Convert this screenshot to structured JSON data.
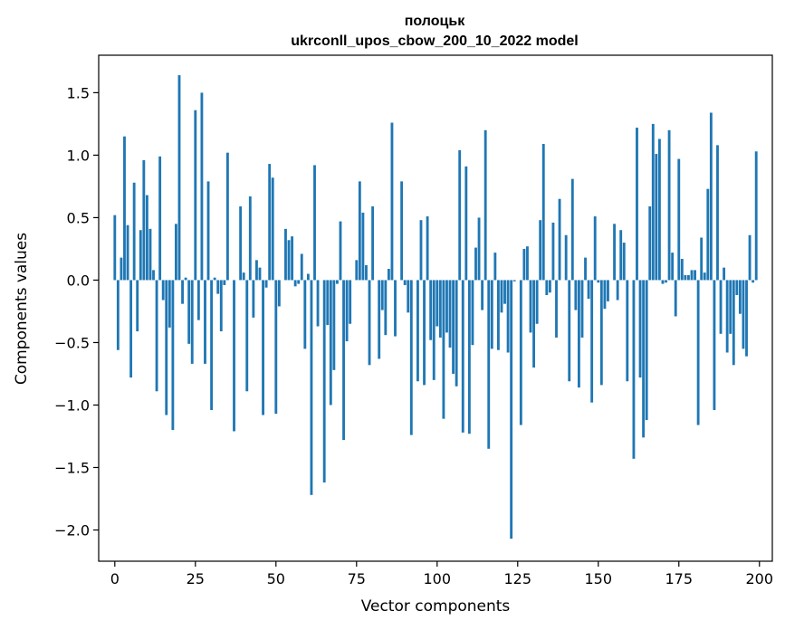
{
  "chart_data": {
    "type": "bar",
    "title": "полоцьк",
    "subtitle": "ukrconll_upos_cbow_200_10_2022 model",
    "xlabel": "Vector components",
    "ylabel": "Components values",
    "xlim": [
      -5,
      204
    ],
    "ylim": [
      -2.25,
      1.8
    ],
    "xticks": [
      0,
      25,
      50,
      75,
      100,
      125,
      150,
      175,
      200
    ],
    "yticks": [
      -2.0,
      -1.5,
      -1.0,
      -0.5,
      0.0,
      0.5,
      1.0,
      1.5
    ],
    "xtick_labels": [
      "0",
      "25",
      "50",
      "75",
      "100",
      "125",
      "150",
      "175",
      "200"
    ],
    "ytick_labels": [
      "−2.0",
      "−1.5",
      "−1.0",
      "−0.5",
      "0.0",
      "0.5",
      "1.0",
      "1.5"
    ],
    "grid": false,
    "bar_color": "#1f77b4",
    "x": [
      0,
      1,
      2,
      3,
      4,
      5,
      6,
      7,
      8,
      9,
      10,
      11,
      12,
      13,
      14,
      15,
      16,
      17,
      18,
      19,
      20,
      21,
      22,
      23,
      24,
      25,
      26,
      27,
      28,
      29,
      30,
      31,
      32,
      33,
      34,
      35,
      36,
      37,
      38,
      39,
      40,
      41,
      42,
      43,
      44,
      45,
      46,
      47,
      48,
      49,
      50,
      51,
      52,
      53,
      54,
      55,
      56,
      57,
      58,
      59,
      60,
      61,
      62,
      63,
      64,
      65,
      66,
      67,
      68,
      69,
      70,
      71,
      72,
      73,
      74,
      75,
      76,
      77,
      78,
      79,
      80,
      81,
      82,
      83,
      84,
      85,
      86,
      87,
      88,
      89,
      90,
      91,
      92,
      93,
      94,
      95,
      96,
      97,
      98,
      99,
      100,
      101,
      102,
      103,
      104,
      105,
      106,
      107,
      108,
      109,
      110,
      111,
      112,
      113,
      114,
      115,
      116,
      117,
      118,
      119,
      120,
      121,
      122,
      123,
      124,
      125,
      126,
      127,
      128,
      129,
      130,
      131,
      132,
      133,
      134,
      135,
      136,
      137,
      138,
      139,
      140,
      141,
      142,
      143,
      144,
      145,
      146,
      147,
      148,
      149,
      150,
      151,
      152,
      153,
      154,
      155,
      156,
      157,
      158,
      159,
      160,
      161,
      162,
      163,
      164,
      165,
      166,
      167,
      168,
      169,
      170,
      171,
      172,
      173,
      174,
      175,
      176,
      177,
      178,
      179,
      180,
      181,
      182,
      183,
      184,
      185,
      186,
      187,
      188,
      189,
      190,
      191,
      192,
      193,
      194,
      195,
      196,
      197,
      198,
      199
    ],
    "values": [
      0.52,
      -0.56,
      0.18,
      1.15,
      0.44,
      -0.78,
      0.78,
      -0.41,
      0.4,
      0.96,
      0.68,
      0.41,
      0.08,
      -0.89,
      0.99,
      -0.16,
      -1.08,
      -0.38,
      -1.2,
      0.45,
      1.64,
      -0.19,
      0.02,
      -0.51,
      -0.67,
      1.36,
      -0.32,
      1.5,
      -0.67,
      0.79,
      -1.04,
      0.02,
      -0.11,
      -0.41,
      -0.04,
      1.02,
      0.0,
      -1.21,
      0.0,
      0.59,
      0.06,
      -0.89,
      0.67,
      -0.3,
      0.16,
      0.1,
      -1.08,
      -0.06,
      0.93,
      0.82,
      -1.07,
      -0.21,
      0.0,
      0.41,
      0.32,
      0.35,
      -0.05,
      -0.03,
      0.21,
      -0.55,
      0.05,
      -1.72,
      0.92,
      -0.37,
      0.0,
      -1.62,
      -0.36,
      -1.0,
      -0.72,
      -0.03,
      0.47,
      -1.28,
      -0.49,
      -0.35,
      0.0,
      0.16,
      0.79,
      0.54,
      0.12,
      -0.68,
      0.59,
      0.0,
      -0.63,
      -0.24,
      -0.44,
      0.09,
      1.26,
      -0.45,
      0.0,
      0.79,
      -0.04,
      -0.26,
      -1.24,
      0.0,
      -0.81,
      0.48,
      -0.84,
      0.51,
      -0.48,
      -0.8,
      -0.37,
      -0.46,
      -1.11,
      -0.42,
      -0.54,
      -0.75,
      -0.85,
      1.04,
      -1.22,
      0.91,
      -1.23,
      -0.52,
      0.26,
      0.5,
      -0.24,
      1.2,
      -1.35,
      -0.55,
      0.22,
      -0.56,
      -0.26,
      -0.19,
      -0.58,
      -2.07,
      -0.01,
      0.0,
      -1.16,
      0.25,
      0.27,
      -0.42,
      -0.7,
      -0.35,
      0.48,
      1.09,
      -0.12,
      -0.1,
      0.46,
      -0.46,
      0.65,
      0.0,
      0.36,
      -0.81,
      0.81,
      -0.24,
      -0.86,
      -0.46,
      0.18,
      -0.15,
      -0.98,
      0.51,
      -0.02,
      -0.84,
      -0.23,
      -0.17,
      0.0,
      0.45,
      -0.16,
      0.4,
      0.3,
      -0.81,
      0.0,
      -1.43,
      1.22,
      -0.78,
      -1.26,
      -1.12,
      0.59,
      1.25,
      1.01,
      1.13,
      -0.03,
      -0.02,
      1.2,
      0.22,
      -0.29,
      0.97,
      0.17,
      0.04,
      0.04,
      0.08,
      0.08,
      -1.16,
      0.34,
      0.06,
      0.73,
      1.34,
      -1.04,
      1.08,
      -0.43,
      0.1,
      -0.58,
      -0.43,
      -0.68,
      -0.12,
      -0.27,
      -0.55,
      -0.61,
      0.36,
      -0.02,
      1.03
    ]
  }
}
